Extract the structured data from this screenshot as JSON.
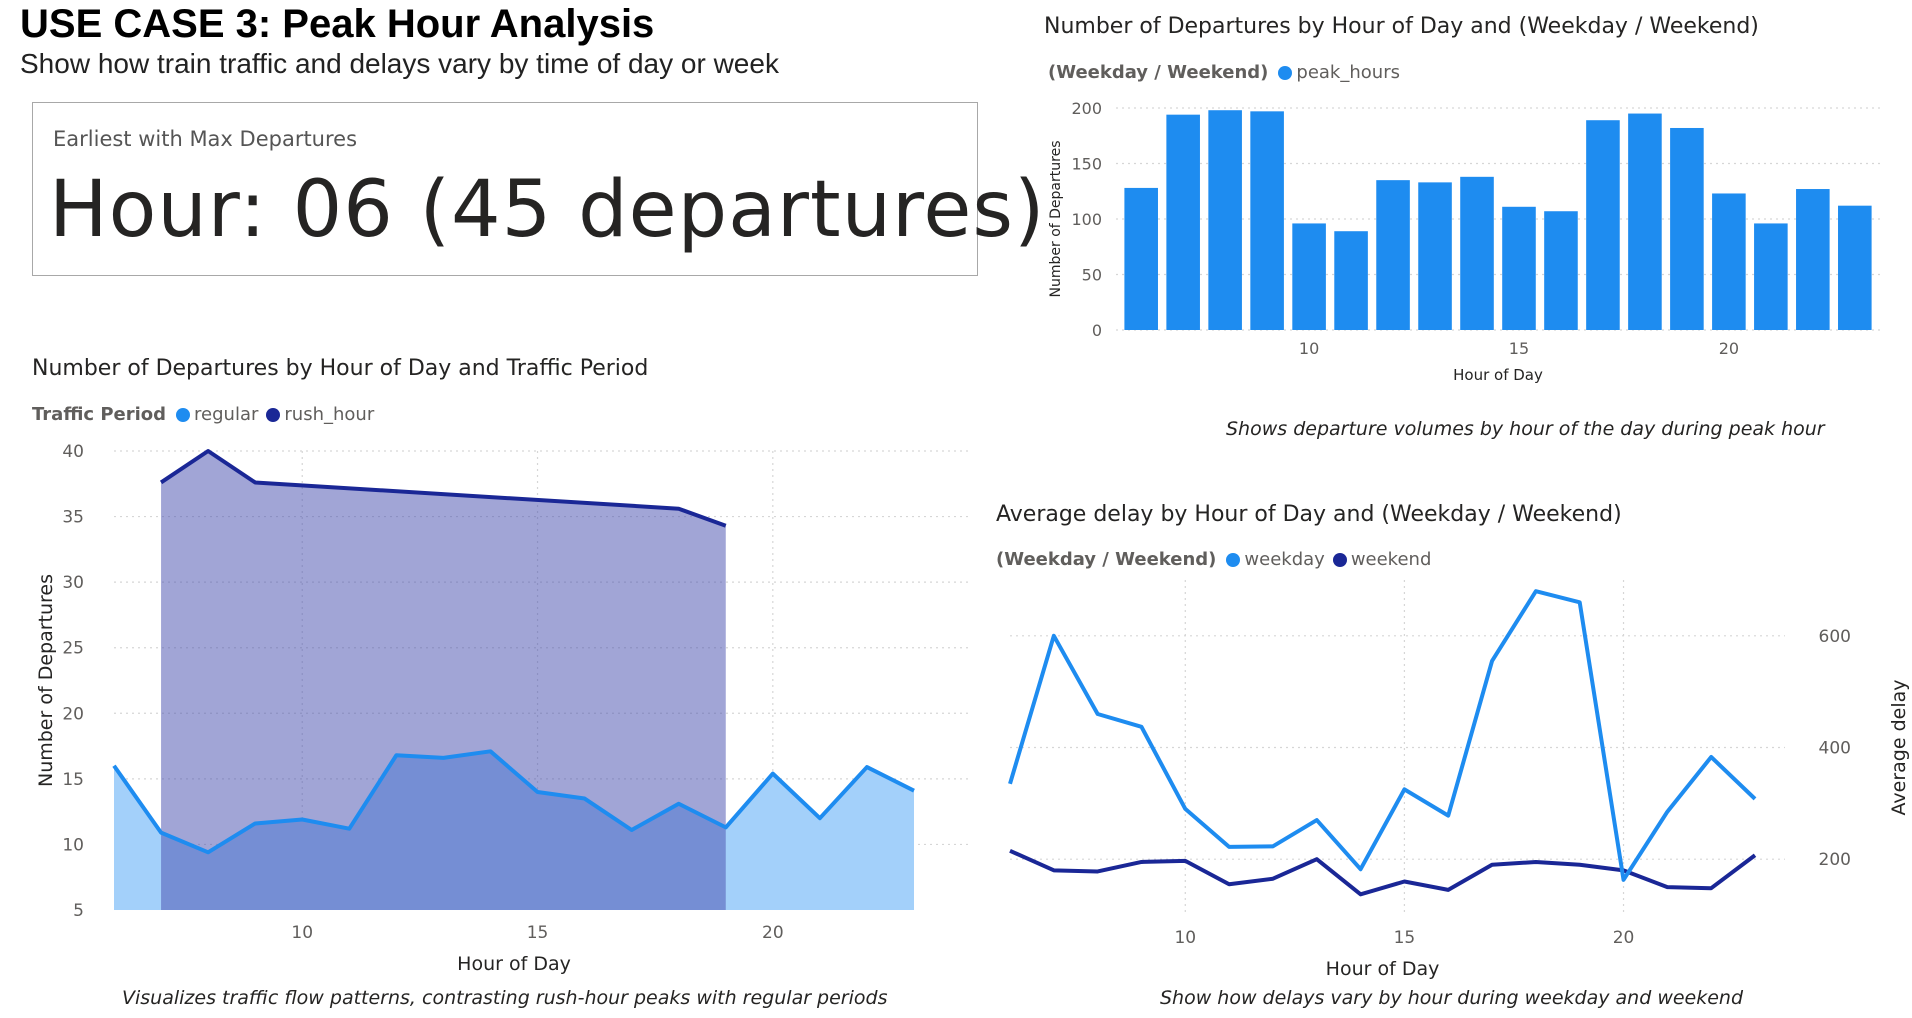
{
  "header": {
    "title": "USE CASE 3: Peak Hour Analysis",
    "subtitle": "Show how train traffic and delays vary by time of day or week"
  },
  "kpi": {
    "label": "Earliest with Max Departures",
    "value": "Hour: 06 (45 departures)"
  },
  "colors": {
    "light_blue": "#1e8cf0",
    "dark_blue": "#1a2796",
    "regular_fill": "#a3d0fa",
    "rush_fill": "#a0a6d6",
    "grid": "#d6d6d6",
    "axis_text": "#605e5c"
  },
  "chart_data": [
    {
      "id": "departures-by-hour-weekday-weekend",
      "type": "bar",
      "title": "Number of Departures by Hour of Day and (Weekday / Weekend)",
      "legend_title": "(Weekday / Weekend)",
      "legend_position": "top-left",
      "series": [
        {
          "name": "peak_hours",
          "color": "#1e8cf0",
          "x": [
            6,
            7,
            8,
            9,
            10,
            11,
            12,
            13,
            14,
            15,
            16,
            17,
            18,
            19,
            20,
            21,
            22,
            23
          ],
          "values": [
            128,
            194,
            198,
            197,
            96,
            89,
            135,
            133,
            138,
            111,
            107,
            189,
            195,
            182,
            123,
            96,
            127,
            112
          ]
        }
      ],
      "xlabel": "Hour of Day",
      "ylabel": "Number of Departures",
      "x_ticks": [
        10,
        15,
        20
      ],
      "y_ticks": [
        0,
        50,
        100,
        150,
        200
      ],
      "xlim": [
        5.4,
        23.6
      ],
      "ylim": [
        0,
        200
      ],
      "grid": true,
      "caption": "Shows departure volumes by hour of the day during peak hour"
    },
    {
      "id": "departures-by-hour-traffic-period",
      "type": "area",
      "title": "Number of Departures by Hour of Day and Traffic Period",
      "legend_title": "Traffic Period",
      "legend_position": "top-left",
      "series": [
        {
          "name": "regular",
          "color": "#1e8cf0",
          "fill": "#a3d0fa",
          "x": [
            6,
            7,
            8,
            9,
            10,
            11,
            12,
            13,
            14,
            15,
            16,
            17,
            18,
            19,
            20,
            21,
            22,
            23
          ],
          "values": [
            16,
            10.9,
            9.4,
            11.6,
            11.9,
            11.2,
            16.8,
            16.6,
            17.1,
            14,
            13.5,
            11.1,
            13.1,
            11.3,
            15.4,
            12,
            15.9,
            14.1
          ]
        },
        {
          "name": "rush_hour",
          "color": "#1a2796",
          "fill": "#a0a6d6",
          "x": [
            7,
            8,
            9,
            18,
            19
          ],
          "values": [
            37.6,
            40,
            37.6,
            35.6,
            34.3
          ]
        }
      ],
      "xlabel": "Hour of Day",
      "ylabel": "Number of Departures",
      "x_ticks": [
        10,
        15,
        20
      ],
      "y_ticks": [
        5,
        10,
        15,
        20,
        25,
        30,
        35,
        40
      ],
      "xlim": [
        6,
        23
      ],
      "ylim": [
        5,
        40
      ],
      "grid": true,
      "caption": "Visualizes traffic flow patterns, contrasting rush-hour peaks with regular periods"
    },
    {
      "id": "average-delay-by-hour",
      "type": "line",
      "title": "Average delay by Hour of Day and (Weekday / Weekend)",
      "legend_title": "(Weekday / Weekend)",
      "legend_position": "top-left",
      "series": [
        {
          "name": "weekday",
          "color": "#1e8cf0",
          "x": [
            6,
            7,
            8,
            9,
            10,
            11,
            12,
            13,
            14,
            15,
            16,
            17,
            18,
            19,
            20,
            21,
            22,
            23
          ],
          "values": [
            335,
            600,
            460,
            437,
            290,
            222,
            223,
            270,
            182,
            325,
            278,
            555,
            680,
            660,
            163,
            285,
            383,
            308
          ]
        },
        {
          "name": "weekend",
          "color": "#1a2796",
          "x": [
            6,
            7,
            8,
            9,
            10,
            11,
            12,
            13,
            14,
            15,
            16,
            17,
            18,
            19,
            20,
            21,
            22,
            23
          ],
          "values": [
            215,
            180,
            178,
            195,
            197,
            155,
            165,
            200,
            137,
            160,
            145,
            190,
            195,
            190,
            180,
            150,
            148,
            207
          ]
        }
      ],
      "xlabel": "Hour of Day",
      "ylabel": "Average delay",
      "x_ticks": [
        10,
        15,
        20
      ],
      "y_ticks": [
        200,
        400,
        600
      ],
      "y_axis_side": "right",
      "xlim": [
        6,
        23
      ],
      "ylim": [
        100,
        700
      ],
      "grid": true,
      "caption": "Show how delays vary by hour during weekday and weekend"
    }
  ]
}
